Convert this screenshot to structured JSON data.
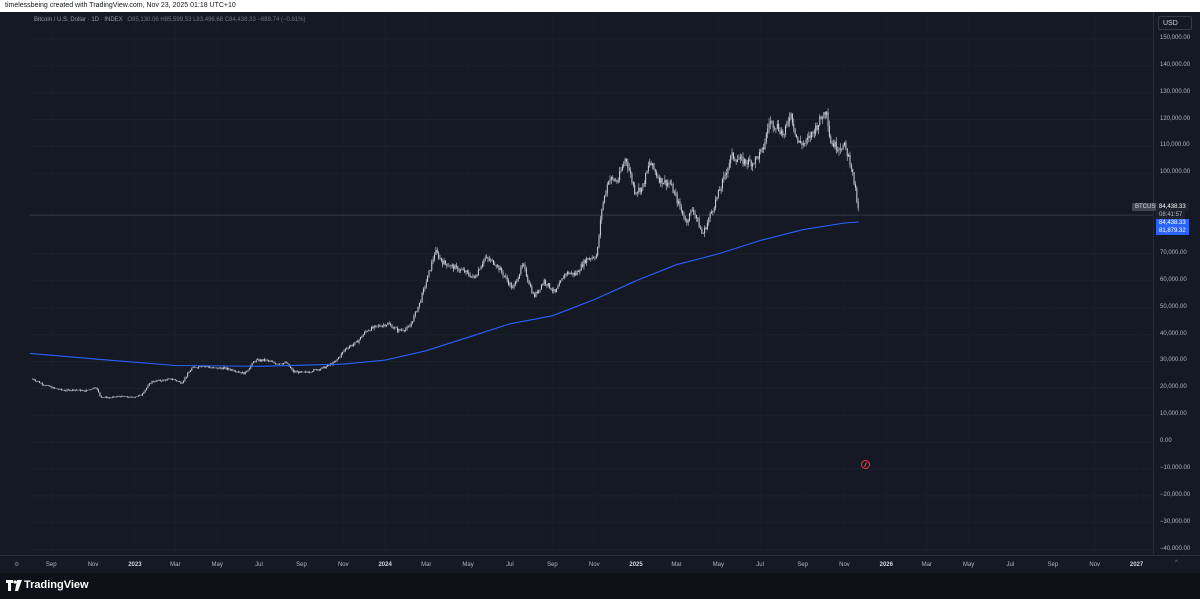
{
  "topbar": {
    "caption": "timelessbeing created with TradingView.com, Nov 23, 2025 01:18 UTC+10"
  },
  "legend": {
    "symbol": "Bitcoin / U.S. Dollar · 1D · INDEX",
    "ohlc": "O85,130.06 H85,599.53 L83,496.68 C84,438.33 −689.74 (−0.81%)"
  },
  "price_axis": {
    "currency": "USD",
    "ticker_label": "BTCUSD",
    "last_price": "84,438.33",
    "countdown": "08:41:57",
    "last_price_repeat": "84,438.33",
    "sma_value": "81,879.32"
  },
  "footer": {
    "brand": "TradingView"
  },
  "colors": {
    "background": "#151924",
    "candles": "#d1d4dc",
    "moving_average": "#2962ff",
    "price_line": "#363a45"
  },
  "chart_data": {
    "type": "line",
    "symbol": "BTCUSD",
    "currency": "USD",
    "y_ticks": [
      {
        "value": 150000,
        "label": "150,000.00"
      },
      {
        "value": 140000,
        "label": "140,000.00"
      },
      {
        "value": 130000,
        "label": "130,000.00"
      },
      {
        "value": 120000,
        "label": "120,000.00"
      },
      {
        "value": 110000,
        "label": "110,000.00"
      },
      {
        "value": 100000,
        "label": "100,000.00"
      },
      {
        "value": 70000,
        "label": "70,000.00"
      },
      {
        "value": 60000,
        "label": "60,000.00"
      },
      {
        "value": 50000,
        "label": "50,000.00"
      },
      {
        "value": 40000,
        "label": "40,000.00"
      },
      {
        "value": 30000,
        "label": "30,000.00"
      },
      {
        "value": 20000,
        "label": "20,000.00"
      },
      {
        "value": 10000,
        "label": "10,000.00"
      },
      {
        "value": 0,
        "label": "0.00"
      },
      {
        "value": -10000,
        "label": "−10,000.00"
      },
      {
        "value": -20000,
        "label": "−20,000.00"
      },
      {
        "value": -30000,
        "label": "−30,000.00"
      },
      {
        "value": -40000,
        "label": "−40,000.00"
      }
    ],
    "ylim": [
      -42000,
      160000
    ],
    "x_ticks": [
      {
        "date": "2022-09-01",
        "label": "Sep",
        "year": false
      },
      {
        "date": "2022-11-01",
        "label": "Nov",
        "year": false
      },
      {
        "date": "2023-01-01",
        "label": "2023",
        "year": true
      },
      {
        "date": "2023-03-01",
        "label": "Mar",
        "year": false
      },
      {
        "date": "2023-05-01",
        "label": "May",
        "year": false
      },
      {
        "date": "2023-07-01",
        "label": "Jul",
        "year": false
      },
      {
        "date": "2023-09-01",
        "label": "Sep",
        "year": false
      },
      {
        "date": "2023-11-01",
        "label": "Nov",
        "year": false
      },
      {
        "date": "2024-01-01",
        "label": "2024",
        "year": true
      },
      {
        "date": "2024-03-01",
        "label": "Mar",
        "year": false
      },
      {
        "date": "2024-05-01",
        "label": "May",
        "year": false
      },
      {
        "date": "2024-07-01",
        "label": "Jul",
        "year": false
      },
      {
        "date": "2024-09-01",
        "label": "Sep",
        "year": false
      },
      {
        "date": "2024-11-01",
        "label": "Nov",
        "year": false
      },
      {
        "date": "2025-01-01",
        "label": "2025",
        "year": true
      },
      {
        "date": "2025-03-01",
        "label": "Mar",
        "year": false
      },
      {
        "date": "2025-05-01",
        "label": "May",
        "year": false
      },
      {
        "date": "2025-07-01",
        "label": "Jul",
        "year": false
      },
      {
        "date": "2025-09-01",
        "label": "Sep",
        "year": false
      },
      {
        "date": "2025-11-01",
        "label": "Nov",
        "year": false
      },
      {
        "date": "2026-01-01",
        "label": "2026",
        "year": true
      },
      {
        "date": "2026-03-01",
        "label": "Mar",
        "year": false
      },
      {
        "date": "2026-05-01",
        "label": "May",
        "year": false
      },
      {
        "date": "2026-07-01",
        "label": "Jul",
        "year": false
      },
      {
        "date": "2026-09-01",
        "label": "Sep",
        "year": false
      },
      {
        "date": "2026-11-01",
        "label": "Nov",
        "year": false
      },
      {
        "date": "2027-01-01",
        "label": "2027",
        "year": true
      }
    ],
    "xlim": [
      "2022-08-01",
      "2027-01-25"
    ],
    "last_price": 84438.33,
    "series": [
      {
        "style": "candles",
        "x": [
          "2022-08-05",
          "2022-08-20",
          "2022-09-05",
          "2022-09-20",
          "2022-10-05",
          "2022-10-20",
          "2022-11-05",
          "2022-11-12",
          "2022-11-25",
          "2022-12-10",
          "2022-12-28",
          "2023-01-10",
          "2023-01-25",
          "2023-02-10",
          "2023-02-25",
          "2023-03-10",
          "2023-03-25",
          "2023-04-10",
          "2023-04-25",
          "2023-05-10",
          "2023-05-25",
          "2023-06-10",
          "2023-06-25",
          "2023-07-10",
          "2023-07-25",
          "2023-08-10",
          "2023-08-20",
          "2023-09-05",
          "2023-09-20",
          "2023-10-05",
          "2023-10-20",
          "2023-11-05",
          "2023-11-20",
          "2023-12-05",
          "2023-12-20",
          "2024-01-05",
          "2024-01-20",
          "2024-02-05",
          "2024-02-20",
          "2024-03-05",
          "2024-03-14",
          "2024-03-25",
          "2024-04-10",
          "2024-04-25",
          "2024-05-10",
          "2024-05-25",
          "2024-06-10",
          "2024-06-25",
          "2024-07-05",
          "2024-07-20",
          "2024-08-05",
          "2024-08-20",
          "2024-09-05",
          "2024-09-20",
          "2024-10-05",
          "2024-10-20",
          "2024-11-05",
          "2024-11-12",
          "2024-11-22",
          "2024-12-05",
          "2024-12-17",
          "2024-12-30",
          "2025-01-10",
          "2025-01-21",
          "2025-02-05",
          "2025-02-20",
          "2025-03-05",
          "2025-03-15",
          "2025-03-25",
          "2025-04-08",
          "2025-04-20",
          "2025-05-05",
          "2025-05-20",
          "2025-06-05",
          "2025-06-20",
          "2025-07-05",
          "2025-07-14",
          "2025-07-25",
          "2025-08-05",
          "2025-08-14",
          "2025-08-25",
          "2025-09-05",
          "2025-09-20",
          "2025-10-06",
          "2025-10-11",
          "2025-10-20",
          "2025-11-01",
          "2025-11-10",
          "2025-11-16",
          "2025-11-22"
        ],
        "y": [
          23500,
          21500,
          20000,
          19200,
          19500,
          19000,
          20500,
          16800,
          16500,
          17000,
          16600,
          17500,
          22500,
          23000,
          23500,
          22000,
          27500,
          28500,
          27500,
          27500,
          26800,
          25500,
          30300,
          30500,
          29300,
          29400,
          26200,
          25800,
          26800,
          27800,
          29800,
          35000,
          37000,
          41500,
          43000,
          44000,
          41500,
          42500,
          51500,
          63000,
          71000,
          67000,
          65000,
          63500,
          61000,
          68500,
          66500,
          61000,
          57000,
          66000,
          54000,
          60000,
          55500,
          63000,
          62500,
          68000,
          69500,
          87000,
          98000,
          97000,
          106000,
          93500,
          94500,
          104000,
          97500,
          96000,
          88000,
          82000,
          87000,
          77000,
          85000,
          95000,
          106500,
          104500,
          104000,
          108500,
          119000,
          118000,
          114000,
          123000,
          111500,
          111000,
          117000,
          124000,
          112000,
          110000,
          110000,
          104000,
          95000,
          84438
        ]
      },
      {
        "style": "moving-average",
        "x": [
          "2022-08-01",
          "2022-11-01",
          "2023-03-01",
          "2023-07-01",
          "2023-11-01",
          "2024-01-01",
          "2024-03-01",
          "2024-05-01",
          "2024-07-01",
          "2024-09-01",
          "2024-11-01",
          "2025-01-01",
          "2025-03-01",
          "2025-05-01",
          "2025-07-01",
          "2025-09-01",
          "2025-11-01",
          "2025-11-22"
        ],
        "y": [
          33000,
          31000,
          28500,
          28200,
          29000,
          30500,
          34000,
          39000,
          44000,
          47000,
          53000,
          60000,
          66000,
          70000,
          75000,
          79000,
          81500,
          81879
        ]
      }
    ]
  }
}
